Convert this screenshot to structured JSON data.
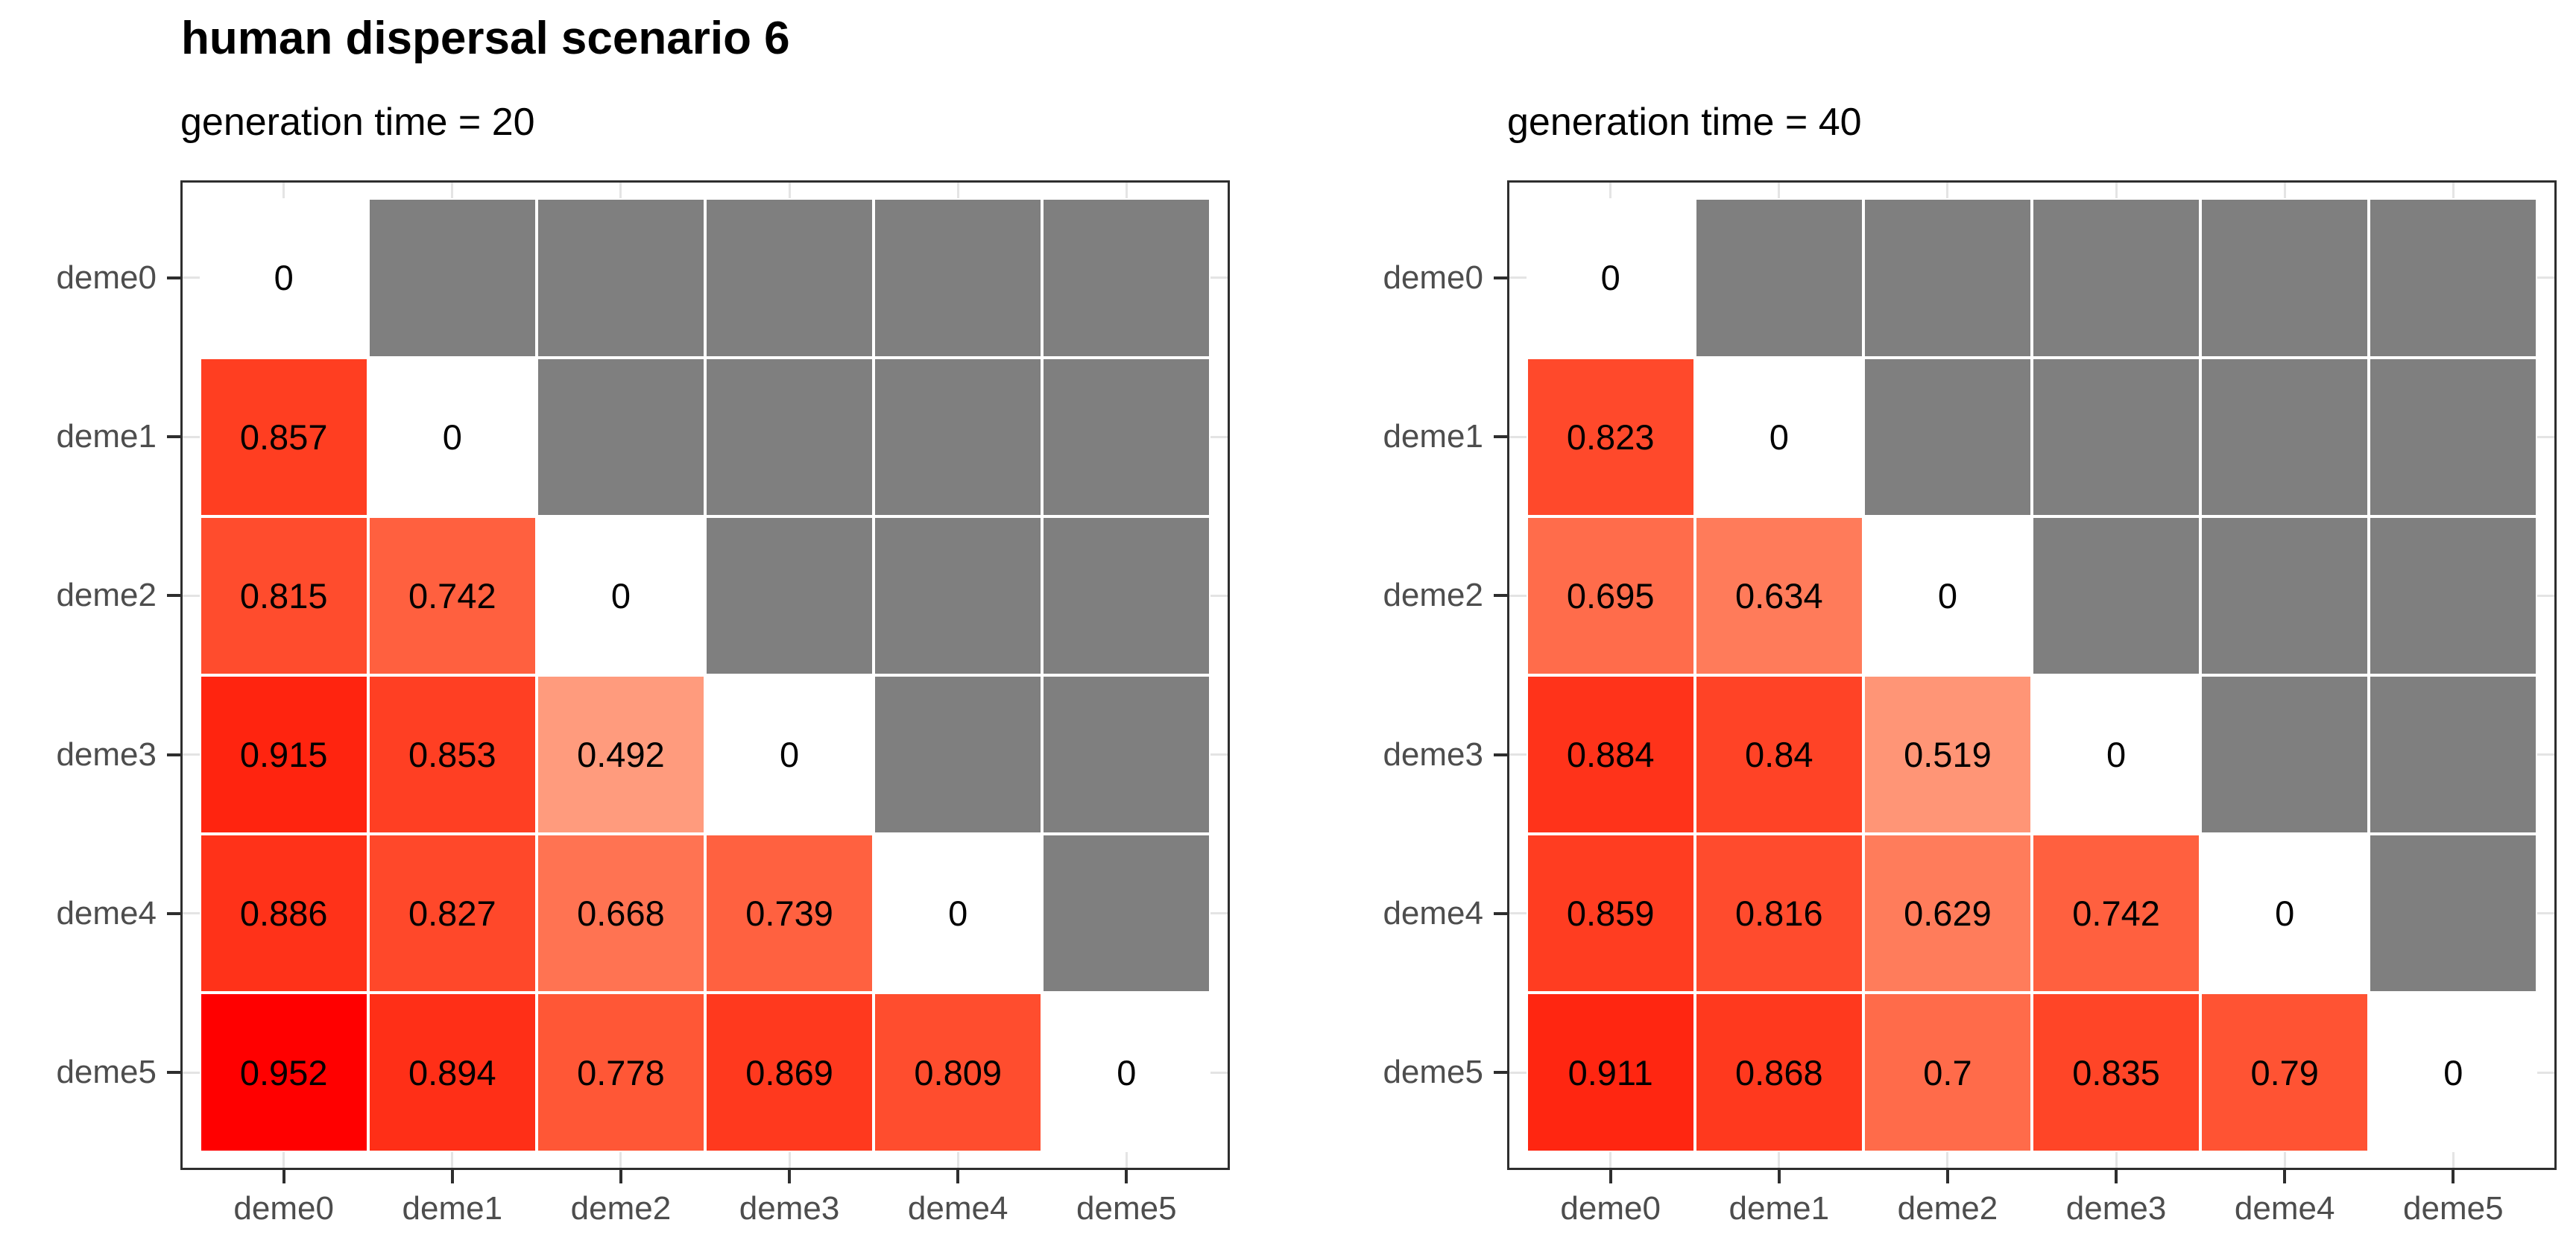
{
  "page_title": "human dispersal scenario 6",
  "chart_data": [
    {
      "type": "heatmap",
      "subtitle": "generation time = 20",
      "x_categories": [
        "deme0",
        "deme1",
        "deme2",
        "deme3",
        "deme4",
        "deme5"
      ],
      "y_categories": [
        "deme0",
        "deme1",
        "deme2",
        "deme3",
        "deme4",
        "deme5"
      ],
      "matrix": [
        [
          0,
          null,
          null,
          null,
          null,
          null
        ],
        [
          0.857,
          0,
          null,
          null,
          null,
          null
        ],
        [
          0.815,
          0.742,
          0,
          null,
          null,
          null
        ],
        [
          0.915,
          0.853,
          0.492,
          0,
          null,
          null
        ],
        [
          0.886,
          0.827,
          0.668,
          0.739,
          0,
          null
        ],
        [
          0.952,
          0.894,
          0.778,
          0.869,
          0.809,
          0
        ]
      ]
    },
    {
      "type": "heatmap",
      "subtitle": "generation time = 40",
      "x_categories": [
        "deme0",
        "deme1",
        "deme2",
        "deme3",
        "deme4",
        "deme5"
      ],
      "y_categories": [
        "deme0",
        "deme1",
        "deme2",
        "deme3",
        "deme4",
        "deme5"
      ],
      "matrix": [
        [
          0,
          null,
          null,
          null,
          null,
          null
        ],
        [
          0.823,
          0,
          null,
          null,
          null,
          null
        ],
        [
          0.695,
          0.634,
          0,
          null,
          null,
          null
        ],
        [
          0.884,
          0.84,
          0.519,
          0,
          null,
          null
        ],
        [
          0.859,
          0.816,
          0.629,
          0.742,
          0,
          null
        ],
        [
          0.911,
          0.868,
          0.7,
          0.835,
          0.79,
          0
        ]
      ]
    }
  ],
  "scale": {
    "low_color": "#FFFFFF",
    "high_color": "#FF0000",
    "na_color": "#7F7F7F",
    "domain": [
      0,
      0.952
    ]
  },
  "style_colors": {
    "value_text": "#000000",
    "axis_text": "#4D4D4D",
    "panel_border": "#2E2E2E",
    "tick": "#2E2E2E",
    "grid_stub": "#E4E4E4",
    "cell_stroke": "#FFFFFF"
  }
}
